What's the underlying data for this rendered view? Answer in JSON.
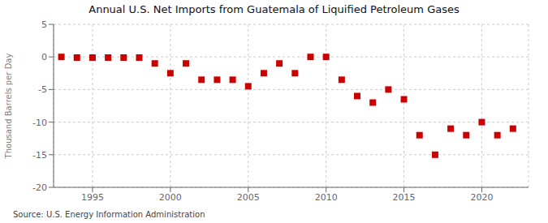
{
  "chart_data": {
    "type": "scatter",
    "title": "Annual U.S. Net Imports from Guatemala of Liquified Petroleum Gases",
    "ylabel": "Thousand Barrels per Day",
    "annotations": [
      "Source: U.S. Energy Information Administration"
    ],
    "x": [
      1993,
      1994,
      1995,
      1996,
      1997,
      1998,
      1999,
      2000,
      2001,
      2002,
      2003,
      2004,
      2005,
      2006,
      2007,
      2008,
      2009,
      2010,
      2011,
      2012,
      2013,
      2014,
      2015,
      2016,
      2017,
      2018,
      2019,
      2020,
      2021,
      2022
    ],
    "values": [
      0,
      -0.1,
      -0.1,
      -0.1,
      -0.1,
      -0.1,
      -1.0,
      -2.5,
      -1.0,
      -3.5,
      -3.5,
      -3.5,
      -4.5,
      -2.5,
      -1.0,
      -2.5,
      0,
      0,
      -3.5,
      -6.0,
      -7.0,
      -5.0,
      -6.5,
      -12.0,
      -15.0,
      -11.0,
      -12.0,
      -10.0,
      -12.0,
      -11.0
    ],
    "color": "#cc0000",
    "marker": "square",
    "xlim": [
      1992.5,
      2023
    ],
    "xticks": [
      1995,
      2000,
      2005,
      2010,
      2015,
      2020
    ],
    "ylim": [
      -20,
      5
    ],
    "yticks": [
      -20,
      -15,
      -10,
      -5,
      0,
      5
    ],
    "grid": true
  }
}
